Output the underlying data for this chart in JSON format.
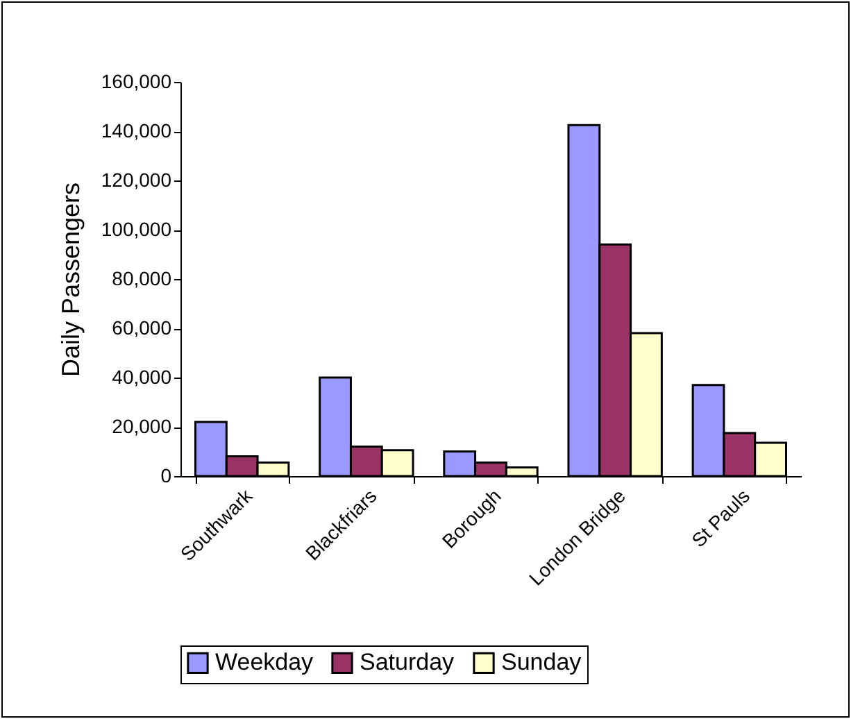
{
  "chart_data": {
    "type": "bar",
    "ylabel": "Daily Passengers",
    "categories": [
      "Southwark",
      "Blackfriars",
      "Borough",
      "London Bridge",
      "St Pauls"
    ],
    "series": [
      {
        "name": "Weekday",
        "color": "#9999ff",
        "values": [
          22000,
          40000,
          10000,
          142500,
          37000
        ]
      },
      {
        "name": "Saturday",
        "color": "#993366",
        "values": [
          8000,
          12000,
          5500,
          94000,
          17500
        ]
      },
      {
        "name": "Sunday",
        "color": "#ffffcc",
        "values": [
          5500,
          10500,
          3500,
          58000,
          13500
        ]
      }
    ],
    "ylim": [
      0,
      160000
    ],
    "yticks": [
      0,
      {
        "value": 20000,
        "label": "20,000"
      },
      {
        "value": 40000,
        "label": "40,000"
      },
      {
        "value": 60000,
        "label": "60,000"
      },
      {
        "value": 80000,
        "label": "80,000"
      },
      {
        "value": 100000,
        "label": "100,000"
      },
      {
        "value": 120000,
        "label": "120,000"
      },
      {
        "value": 140000,
        "label": "140,000"
      },
      {
        "value": 160000,
        "label": "160,000"
      }
    ],
    "grid": false,
    "legend": "bottom"
  }
}
